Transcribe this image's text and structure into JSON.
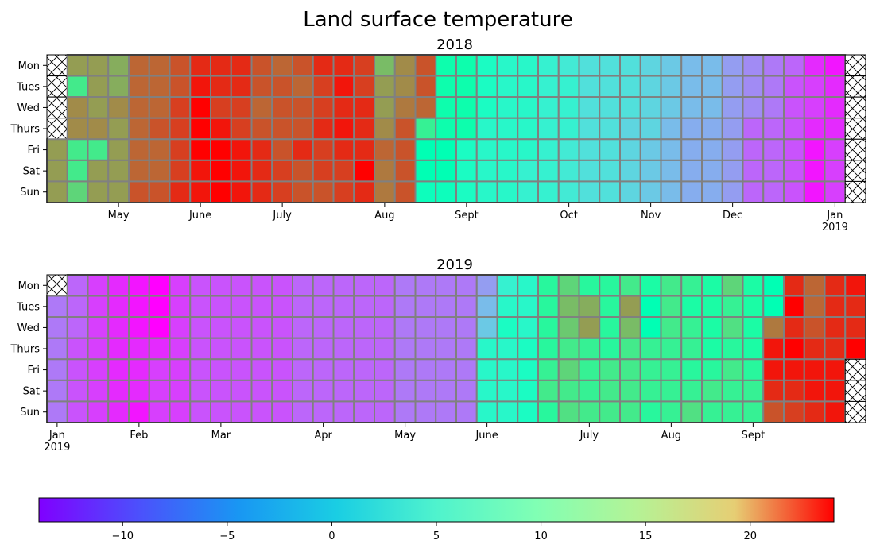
{
  "title": "Land surface temperature",
  "chart_data": {
    "type": "heatmap",
    "title": "Land surface temperature",
    "colormap": "rainbow",
    "value_range": [
      -14,
      24
    ],
    "colorbar": {
      "ticks": [
        -10,
        -5,
        0,
        5,
        10,
        15,
        20
      ],
      "tick_labels": [
        "−10",
        "−5",
        "0",
        "5",
        "10",
        "15",
        "20"
      ]
    },
    "days": [
      "Mon",
      "Tues",
      "Wed",
      "Thurs",
      "Fri",
      "Sat",
      "Sun"
    ],
    "missing_marker": "hatched X cells mark days outside the data range",
    "panels": [
      {
        "title": "2018",
        "month_labels": [
          {
            "label": "May",
            "week": 3.5
          },
          {
            "label": "June",
            "week": 7.5
          },
          {
            "label": "July",
            "week": 11.5
          },
          {
            "label": "Aug",
            "week": 16.5
          },
          {
            "label": "Sept",
            "week": 20.5
          },
          {
            "label": "Oct",
            "week": 25.5
          },
          {
            "label": "Nov",
            "week": 29.5
          },
          {
            "label": "Dec",
            "week": 33.5
          },
          {
            "label": "Jan\n2019",
            "week": 38.5
          }
        ],
        "weeks": [
          [
            null,
            null,
            null,
            null,
            16,
            16,
            16
          ],
          [
            16,
            10,
            17,
            17,
            10,
            10,
            12
          ],
          [
            16,
            16,
            16,
            17,
            10,
            16,
            16
          ],
          [
            15,
            15,
            17,
            16,
            16,
            16,
            16
          ],
          [
            19,
            19,
            19,
            19,
            19,
            19,
            20
          ],
          [
            19,
            19,
            19,
            20,
            19,
            19,
            20
          ],
          [
            20,
            20,
            21,
            21,
            21,
            21,
            22
          ],
          [
            22,
            23,
            24,
            24,
            24,
            23,
            23
          ],
          [
            22,
            22,
            21,
            23,
            24,
            24,
            24
          ],
          [
            22,
            22,
            21,
            21,
            23,
            23,
            23
          ],
          [
            20,
            20,
            19,
            20,
            22,
            22,
            22
          ],
          [
            19,
            20,
            20,
            20,
            20,
            21,
            21
          ],
          [
            20,
            19,
            20,
            20,
            22,
            20,
            20
          ],
          [
            22,
            21,
            21,
            22,
            21,
            21,
            20
          ],
          [
            22,
            23,
            22,
            23,
            22,
            21,
            21
          ],
          [
            21,
            21,
            22,
            22,
            22,
            24,
            22
          ],
          [
            14,
            16,
            16,
            17,
            19,
            18,
            18
          ],
          [
            17,
            17,
            18,
            20,
            20,
            20,
            20
          ],
          [
            20,
            20,
            19,
            9,
            5,
            5,
            4
          ],
          [
            6,
            6,
            6,
            6,
            5,
            5,
            4
          ],
          [
            6,
            6,
            6,
            6,
            3,
            3,
            3
          ],
          [
            3,
            3,
            3,
            2,
            2,
            2,
            2
          ],
          [
            2,
            2,
            2,
            2,
            2,
            2,
            2
          ],
          [
            2,
            2,
            2,
            2,
            2,
            1,
            1
          ],
          [
            1,
            1,
            1,
            1,
            1,
            1,
            1
          ],
          [
            0,
            1,
            1,
            1,
            0,
            0,
            0
          ],
          [
            -1,
            -1,
            -1,
            -1,
            -1,
            -1,
            -1
          ],
          [
            -1,
            -1,
            -1,
            -1,
            -1,
            -1,
            -1
          ],
          [
            -1,
            -1,
            -1,
            -2,
            -2,
            -2,
            -2
          ],
          [
            -2,
            -2,
            -2,
            -2,
            -3,
            -3,
            -3
          ],
          [
            -3,
            -3,
            -3,
            -4,
            -4,
            -4,
            -4
          ],
          [
            -4,
            -4,
            -4,
            -5,
            -5,
            -5,
            -5
          ],
          [
            -4,
            -4,
            -4,
            -5,
            -5,
            -5,
            -5
          ],
          [
            -6,
            -6,
            -6,
            -6,
            -6,
            -6,
            -6
          ],
          [
            -7,
            -7,
            -7,
            -9,
            -9,
            -9,
            -9
          ],
          [
            -8,
            -8,
            -8,
            -9,
            -9,
            -9,
            -9
          ],
          [
            -9,
            -10,
            -10,
            -10,
            -10,
            -10,
            -10
          ],
          [
            -12,
            -11,
            -11,
            -12,
            -13,
            -13,
            -13
          ],
          [
            -13,
            -12,
            -12,
            -12,
            -11,
            -11,
            -11
          ],
          [
            null,
            null,
            null,
            null,
            null,
            null,
            null
          ]
        ]
      },
      {
        "title": "2019",
        "month_labels": [
          {
            "label": "Jan\n2019",
            "week": 0.5
          },
          {
            "label": "Feb",
            "week": 4.5
          },
          {
            "label": "Mar",
            "week": 8.5
          },
          {
            "label": "Apr",
            "week": 13.5
          },
          {
            "label": "May",
            "week": 17.5
          },
          {
            "label": "June",
            "week": 21.5
          },
          {
            "label": "July",
            "week": 26.5
          },
          {
            "label": "Aug",
            "week": 30.5
          },
          {
            "label": "Sept",
            "week": 34.5
          }
        ],
        "weeks": [
          [
            null,
            -8,
            -8,
            -8,
            -8,
            -8,
            -8
          ],
          [
            -9,
            -9,
            -9,
            -10,
            -10,
            -10,
            -10
          ],
          [
            -11,
            -11,
            -11,
            -11,
            -11,
            -11,
            -11
          ],
          [
            -12,
            -12,
            -12,
            -12,
            -12,
            -12,
            -12
          ],
          [
            -13,
            -13,
            -13,
            -12,
            -12,
            -12,
            -13
          ],
          [
            -14,
            -14,
            -14,
            -12,
            -11,
            -11,
            -11
          ],
          [
            -11,
            -11,
            -11,
            -11,
            -11,
            -11,
            -11
          ],
          [
            -10,
            -10,
            -10,
            -10,
            -10,
            -10,
            -10
          ],
          [
            -10,
            -10,
            -10,
            -10,
            -10,
            -10,
            -10
          ],
          [
            -10,
            -10,
            -10,
            -10,
            -10,
            -10,
            -10
          ],
          [
            -10,
            -10,
            -10,
            -10,
            -10,
            -10,
            -10
          ],
          [
            -10,
            -10,
            -10,
            -10,
            -10,
            -10,
            -10
          ],
          [
            -9,
            -9,
            -9,
            -9,
            -9,
            -9,
            -9
          ],
          [
            -9,
            -9,
            -9,
            -9,
            -9,
            -9,
            -9
          ],
          [
            -9,
            -9,
            -9,
            -9,
            -9,
            -9,
            -9
          ],
          [
            -9,
            -9,
            -9,
            -9,
            -9,
            -9,
            -9
          ],
          [
            -9,
            -9,
            -9,
            -9,
            -9,
            -9,
            -9
          ],
          [
            -8,
            -8,
            -8,
            -8,
            -8,
            -8,
            -8
          ],
          [
            -8,
            -8,
            -8,
            -8,
            -8,
            -8,
            -8
          ],
          [
            -8,
            -8,
            -8,
            -8,
            -8,
            -8,
            -8
          ],
          [
            -8,
            -8,
            -8,
            -8,
            -8,
            -8,
            -8
          ],
          [
            -6,
            -4,
            -3,
            2,
            2,
            2,
            2
          ],
          [
            1,
            2,
            3,
            2,
            2,
            2,
            2
          ],
          [
            2,
            2,
            2,
            3,
            3,
            3,
            3
          ],
          [
            8,
            8,
            8,
            8,
            9,
            10,
            8
          ],
          [
            12,
            14,
            13,
            10,
            12,
            10,
            11
          ],
          [
            8,
            15,
            16,
            9,
            9,
            9,
            10
          ],
          [
            8,
            8,
            8,
            8,
            10,
            10,
            10
          ],
          [
            10,
            16,
            14,
            10,
            10,
            10,
            10
          ],
          [
            7,
            5,
            5,
            9,
            9,
            9,
            8
          ],
          [
            10,
            10,
            10,
            9,
            9,
            9,
            9
          ],
          [
            9,
            7,
            9,
            9,
            8,
            9,
            11
          ],
          [
            7,
            7,
            7,
            7,
            8,
            10,
            9
          ],
          [
            12,
            9,
            11,
            8,
            10,
            9,
            9
          ],
          [
            7,
            7,
            7,
            7,
            8,
            9,
            9
          ],
          [
            5,
            5,
            18,
            23,
            23,
            22,
            20
          ],
          [
            22,
            24,
            22,
            24,
            23,
            22,
            21
          ],
          [
            19,
            19,
            20,
            22,
            23,
            23,
            22
          ],
          [
            22,
            22,
            22,
            22,
            23,
            23,
            23
          ],
          [
            23,
            22,
            22,
            24,
            null,
            null,
            null
          ]
        ]
      }
    ]
  }
}
